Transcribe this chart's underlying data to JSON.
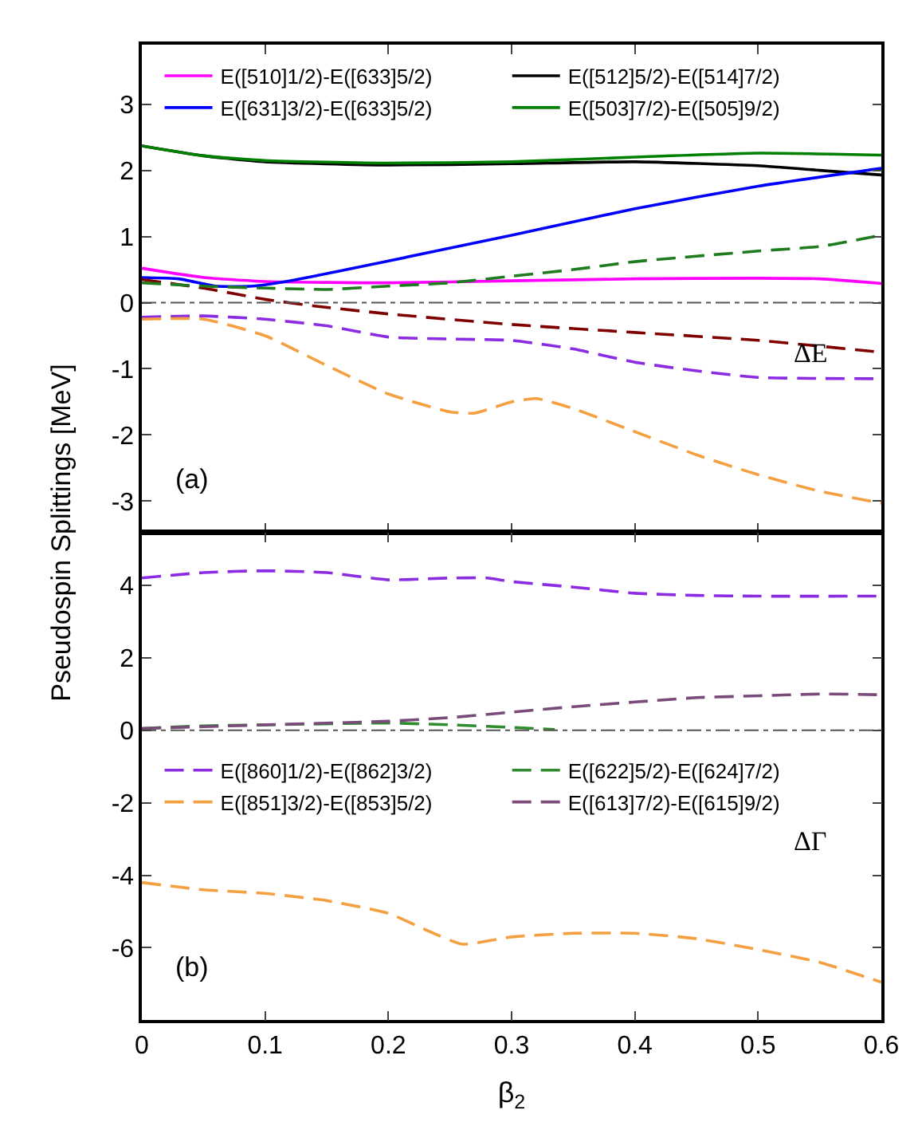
{
  "chart_data": [
    {
      "type": "line",
      "ylabel": "Pseudospin Splittings [MeV]",
      "xlim": [
        0,
        0.6
      ],
      "xticks": [
        0,
        0.1,
        0.2,
        0.3,
        0.4,
        0.5,
        0.6
      ],
      "ylim": [
        -3.47,
        3.9
      ],
      "yticks": [
        -3,
        -2,
        -1,
        0,
        1,
        2,
        3
      ],
      "tick_labels": "y",
      "legend": "top",
      "annotations": [
        "(a)",
        "ΔE"
      ],
      "ref_lines": [
        {
          "axis": "y",
          "value": 0,
          "color": "#555555",
          "line_style": "dotted"
        }
      ],
      "series": [
        {
          "name": "E([510]1/2)-E([633]5/2)",
          "color": "#ff00ff",
          "line_style": "solid",
          "x": [
            0,
            0.05,
            0.1,
            0.2,
            0.3,
            0.4,
            0.5,
            0.55,
            0.6
          ],
          "values": [
            0.52,
            0.38,
            0.32,
            0.3,
            0.33,
            0.36,
            0.37,
            0.36,
            0.29
          ]
        },
        {
          "name": "E([512]5/2)-E([514]7/2)",
          "color": "#000000",
          "line_style": "solid",
          "x": [
            0,
            0.05,
            0.1,
            0.2,
            0.3,
            0.4,
            0.5,
            0.55,
            0.6
          ],
          "values": [
            2.37,
            2.22,
            2.13,
            2.08,
            2.1,
            2.13,
            2.07,
            2.0,
            1.93
          ]
        },
        {
          "name": "E([631]3/2)-E([633]5/2)",
          "color": "#0000ff",
          "line_style": "solid",
          "x": [
            0,
            0.03,
            0.06,
            0.09,
            0.12,
            0.2,
            0.3,
            0.4,
            0.5,
            0.6
          ],
          "values": [
            0.38,
            0.36,
            0.25,
            0.25,
            0.33,
            0.63,
            1.02,
            1.42,
            1.76,
            2.03
          ]
        },
        {
          "name": "E([503]7/2)-E([505]9/2)",
          "color": "#008000",
          "line_style": "solid",
          "x": [
            0,
            0.05,
            0.1,
            0.2,
            0.3,
            0.4,
            0.5,
            0.6
          ],
          "values": [
            2.37,
            2.22,
            2.15,
            2.11,
            2.13,
            2.2,
            2.26,
            2.23
          ]
        },
        {
          "color": "#8b2be2",
          "line_style": "dashed",
          "x": [
            0,
            0.05,
            0.1,
            0.15,
            0.2,
            0.25,
            0.3,
            0.35,
            0.4,
            0.45,
            0.5,
            0.6
          ],
          "values": [
            -0.22,
            -0.2,
            -0.25,
            -0.35,
            -0.52,
            -0.55,
            -0.57,
            -0.7,
            -0.9,
            -1.03,
            -1.13,
            -1.15
          ]
        },
        {
          "color": "#f5a040",
          "line_style": "dashed",
          "x": [
            0,
            0.05,
            0.1,
            0.15,
            0.2,
            0.25,
            0.27,
            0.3,
            0.32,
            0.35,
            0.4,
            0.45,
            0.5,
            0.55,
            0.6
          ],
          "values": [
            -0.25,
            -0.25,
            -0.5,
            -0.95,
            -1.38,
            -1.65,
            -1.67,
            -1.5,
            -1.45,
            -1.6,
            -1.95,
            -2.3,
            -2.6,
            -2.85,
            -3.03
          ]
        },
        {
          "color": "#800000",
          "line_style": "dashed",
          "x": [
            0,
            0.05,
            0.1,
            0.14,
            0.2,
            0.3,
            0.4,
            0.5,
            0.6
          ],
          "values": [
            0.35,
            0.22,
            0.05,
            -0.05,
            -0.17,
            -0.33,
            -0.45,
            -0.57,
            -0.75
          ]
        },
        {
          "color": "#1e7b1e",
          "line_style": "dashed",
          "x": [
            0,
            0.05,
            0.1,
            0.15,
            0.2,
            0.25,
            0.3,
            0.35,
            0.4,
            0.5,
            0.55,
            0.6
          ],
          "values": [
            0.3,
            0.25,
            0.22,
            0.2,
            0.25,
            0.3,
            0.4,
            0.5,
            0.62,
            0.78,
            0.85,
            1.02
          ]
        }
      ]
    },
    {
      "type": "line",
      "xlabel": "β$_{2}$",
      "xlim": [
        0,
        0.6
      ],
      "xticks": [
        0,
        0.1,
        0.2,
        0.3,
        0.4,
        0.5,
        0.6
      ],
      "ylim": [
        -8,
        5.45
      ],
      "yticks": [
        -6,
        -4,
        -2,
        0,
        2,
        4
      ],
      "legend": "left",
      "annotations": [
        "(b)",
        "ΔΓ"
      ],
      "ref_lines": [
        {
          "axis": "y",
          "value": 0,
          "color": "#555555",
          "line_style": "dotted"
        }
      ],
      "series": [
        {
          "name": "E([860]1/2)-E([862]3/2)",
          "color": "#8b2be2",
          "line_style": "dashed",
          "x": [
            0,
            0.05,
            0.1,
            0.15,
            0.2,
            0.25,
            0.28,
            0.3,
            0.35,
            0.4,
            0.45,
            0.5,
            0.6
          ],
          "values": [
            4.2,
            4.35,
            4.4,
            4.35,
            4.15,
            4.2,
            4.2,
            4.1,
            3.95,
            3.78,
            3.72,
            3.7,
            3.7
          ]
        },
        {
          "name": "E([622]5/2)-E([624]7/2)",
          "color": "#2e8b2e",
          "line_style": "dashed",
          "x": [
            0,
            0.05,
            0.1,
            0.2,
            0.25,
            0.3,
            0.335
          ],
          "values": [
            0.05,
            0.12,
            0.15,
            0.2,
            0.15,
            0.08,
            0.02
          ]
        },
        {
          "name": "E([851]3/2)-E([853]5/2)",
          "color": "#f5a040",
          "line_style": "dashed",
          "x": [
            0,
            0.05,
            0.1,
            0.15,
            0.2,
            0.23,
            0.26,
            0.3,
            0.35,
            0.4,
            0.45,
            0.5,
            0.55,
            0.6
          ],
          "values": [
            -4.2,
            -4.4,
            -4.5,
            -4.7,
            -5.05,
            -5.5,
            -5.9,
            -5.7,
            -5.6,
            -5.6,
            -5.75,
            -6.05,
            -6.4,
            -6.95
          ]
        },
        {
          "name": "E([613]7/2)-E([615]9/2)",
          "color": "#7a4a7a",
          "line_style": "dashed",
          "x": [
            0,
            0.1,
            0.2,
            0.25,
            0.3,
            0.35,
            0.4,
            0.45,
            0.5,
            0.55,
            0.6
          ],
          "values": [
            0.05,
            0.15,
            0.25,
            0.35,
            0.5,
            0.65,
            0.78,
            0.9,
            0.95,
            1.0,
            0.98
          ]
        }
      ]
    }
  ]
}
